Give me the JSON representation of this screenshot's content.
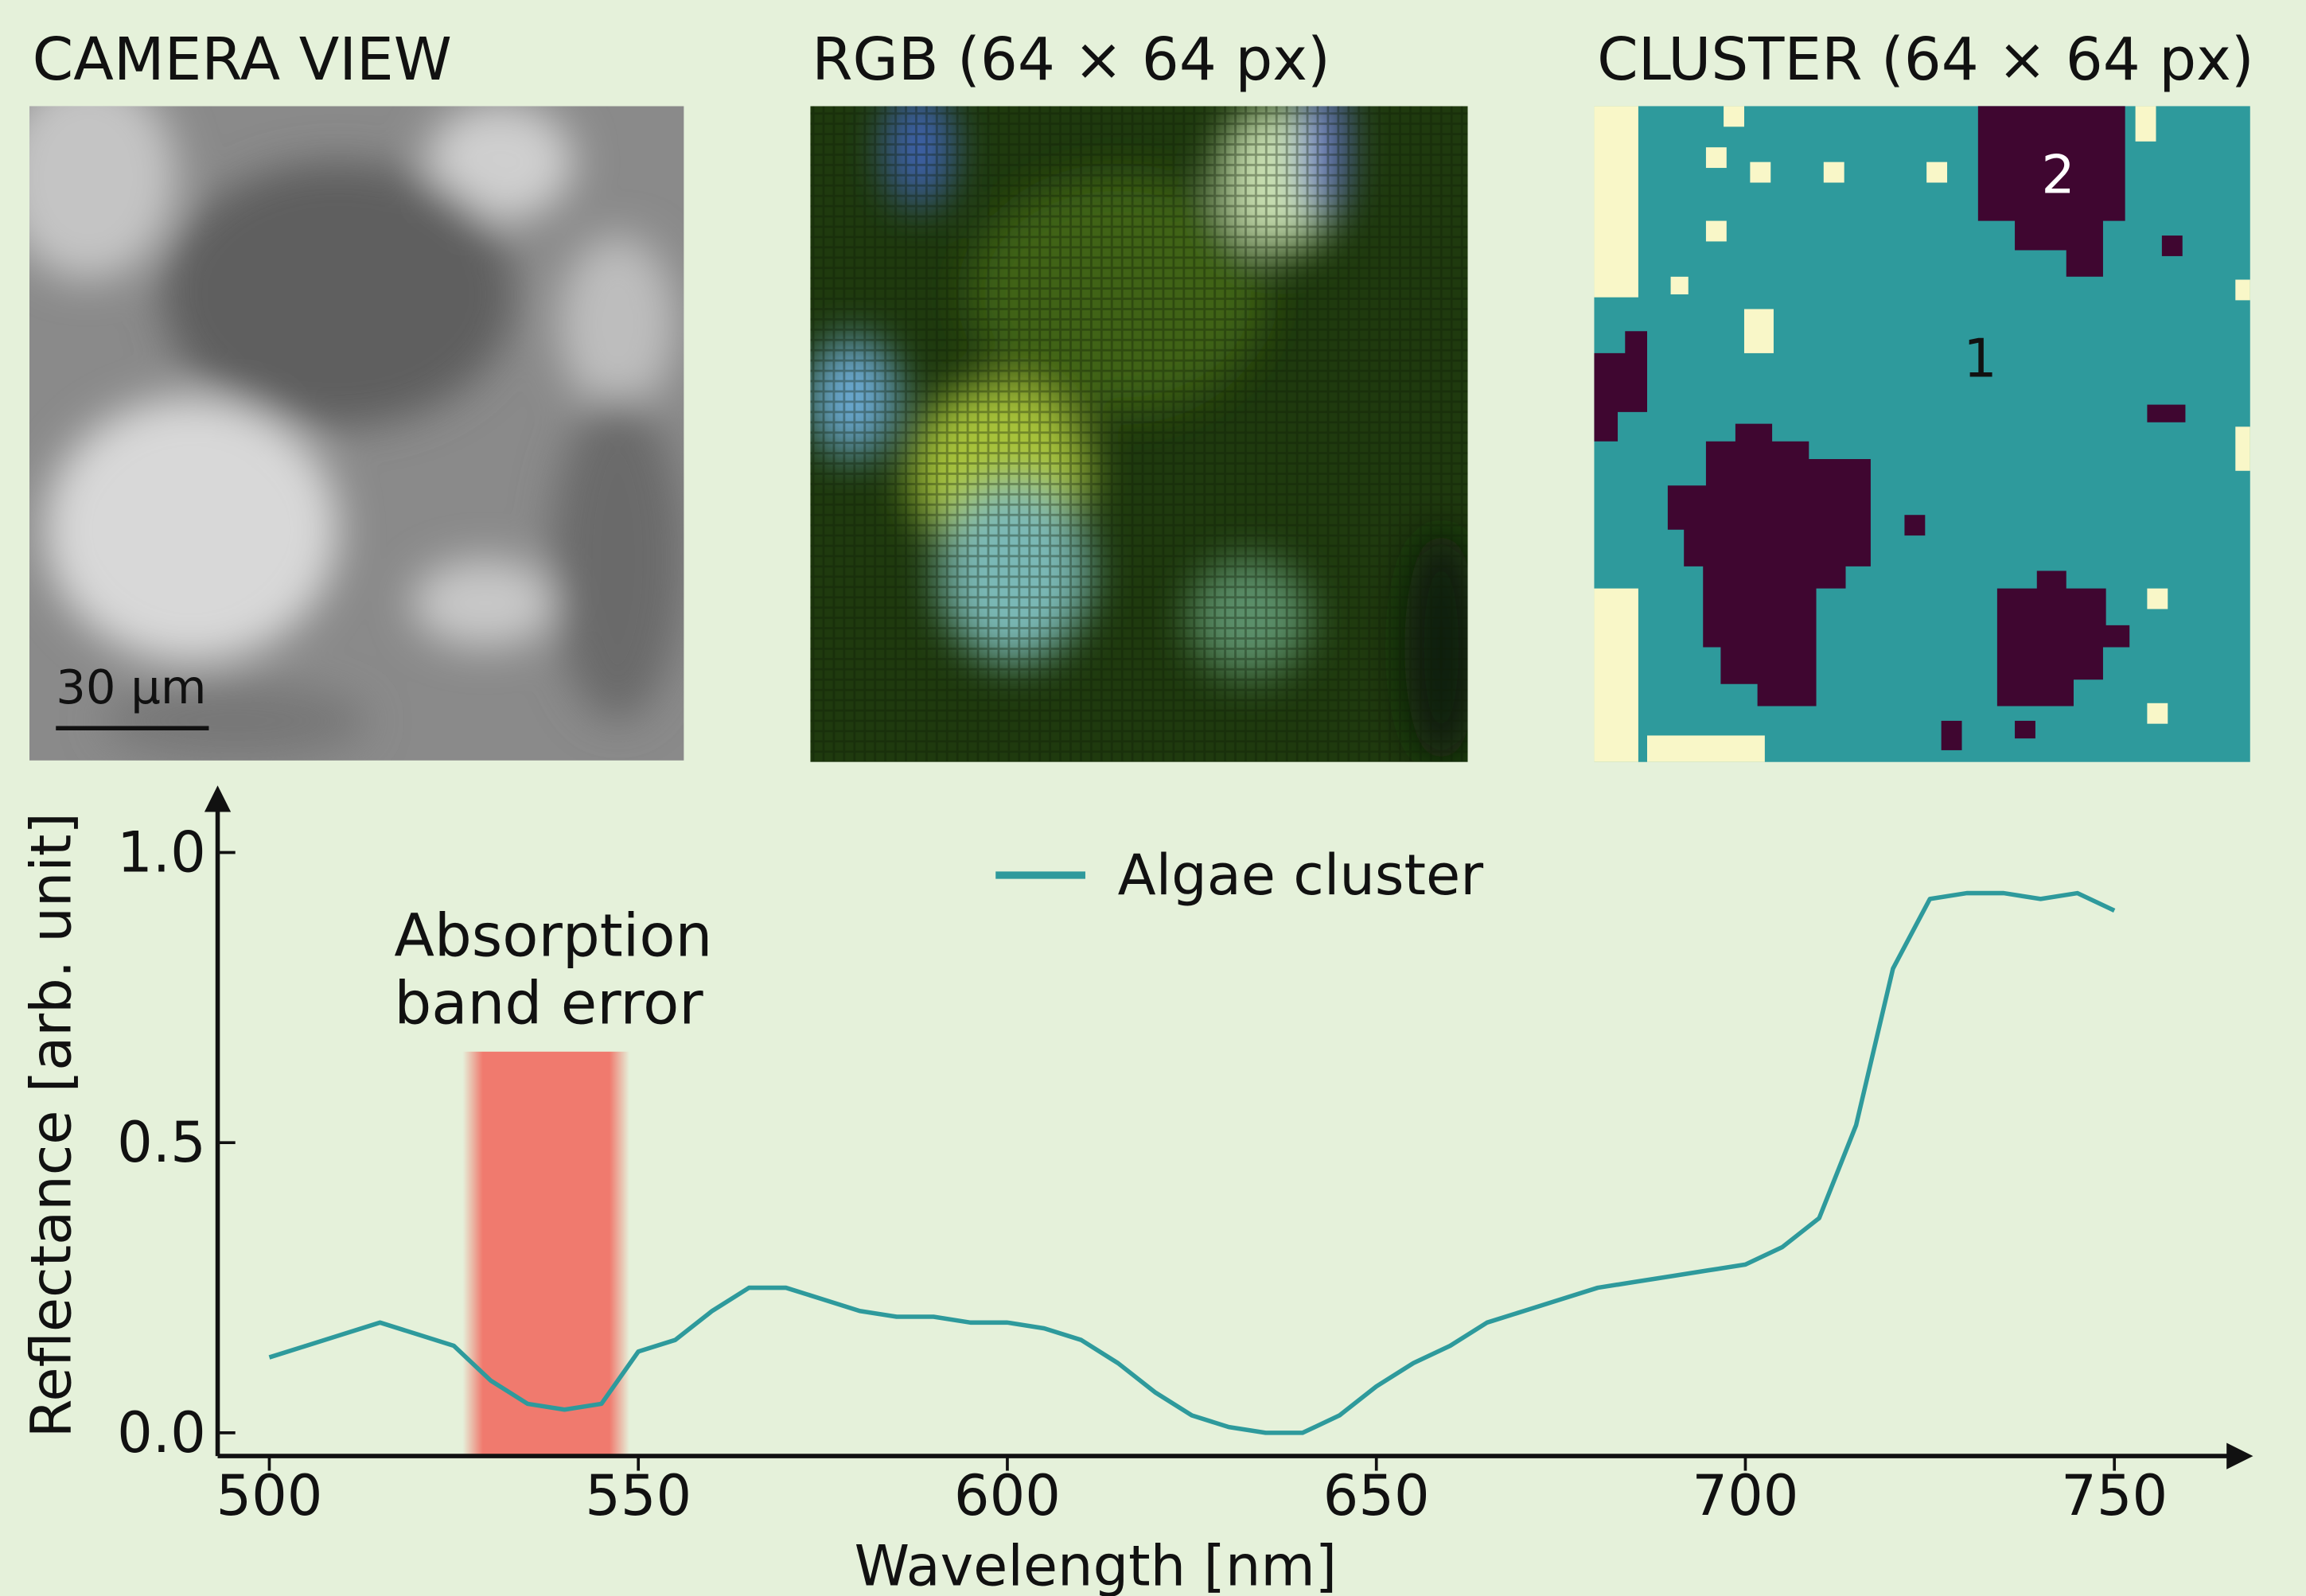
{
  "panels": [
    {
      "title": "CAMERA VIEW",
      "scale_bar": "30 μm"
    },
    {
      "title": "RGB (64 × 64 px)"
    },
    {
      "title": "CLUSTER (64 × 64 px)",
      "labels": [
        "1",
        "2"
      ]
    }
  ],
  "chart_data": {
    "type": "line",
    "x_label": "Wavelength [nm]",
    "y_label": "Reflectance [arb. unit]",
    "x": [
      500,
      505,
      510,
      515,
      520,
      525,
      530,
      535,
      540,
      545,
      550,
      555,
      560,
      565,
      570,
      575,
      580,
      585,
      590,
      595,
      600,
      605,
      610,
      615,
      620,
      625,
      630,
      635,
      640,
      645,
      650,
      655,
      660,
      665,
      670,
      675,
      680,
      685,
      690,
      695,
      700,
      705,
      710,
      715,
      720,
      725,
      730,
      735,
      740,
      745,
      750
    ],
    "series": [
      {
        "name": "Algae cluster",
        "color": "#2e9a9c",
        "values": [
          0.13,
          0.15,
          0.17,
          0.19,
          0.17,
          0.15,
          0.09,
          0.05,
          0.04,
          0.05,
          0.14,
          0.16,
          0.21,
          0.25,
          0.25,
          0.23,
          0.21,
          0.2,
          0.2,
          0.19,
          0.19,
          0.18,
          0.16,
          0.12,
          0.07,
          0.03,
          0.01,
          0.0,
          0.0,
          0.03,
          0.08,
          0.12,
          0.15,
          0.19,
          0.21,
          0.23,
          0.25,
          0.26,
          0.27,
          0.28,
          0.29,
          0.32,
          0.37,
          0.53,
          0.8,
          0.92,
          0.93,
          0.93,
          0.92,
          0.93,
          0.9
        ]
      }
    ],
    "xlim": [
      493,
      766
    ],
    "ylim": [
      -0.04,
      1.08
    ],
    "xticks": [
      500,
      550,
      600,
      650,
      700,
      750
    ],
    "yticks": [
      {
        "value": 0,
        "label": "0.0"
      },
      {
        "value": 0.5,
        "label": "0.5"
      },
      {
        "value": 1,
        "label": "1.0"
      }
    ],
    "legend": "top",
    "annotation": {
      "lines": [
        "Absorption",
        "band error"
      ],
      "band": [
        527,
        548
      ],
      "color": "#f07a6e"
    }
  }
}
